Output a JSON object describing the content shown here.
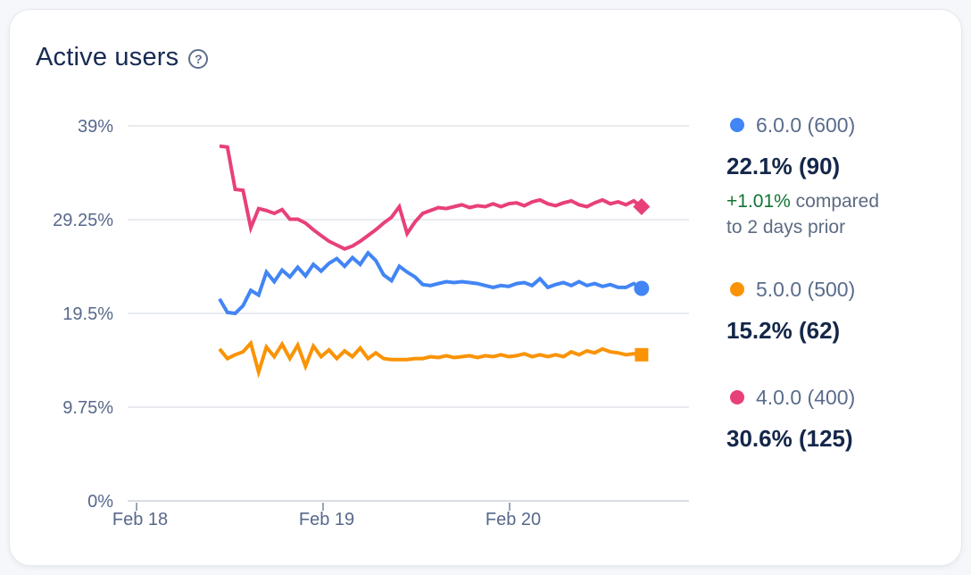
{
  "card": {
    "title": "Active users",
    "help_glyph": "?"
  },
  "legend": {
    "entries": [
      {
        "label": "6.0.0 (600)",
        "value": "22.1% (90)",
        "delta": "+1.01%",
        "delta_suffix": "compared to 2 days prior",
        "color": "#4285F4"
      },
      {
        "label": "5.0.0 (500)",
        "value": "15.2% (62)",
        "color": "#FA9305"
      },
      {
        "label": "4.0.0 (400)",
        "value": "30.6% (125)",
        "color": "#E8407A"
      }
    ]
  },
  "chart_data": {
    "type": "line",
    "title": "Active users",
    "grid": "horizontal",
    "legend_position": "right",
    "ylim": [
      0,
      39
    ],
    "y_ticks": [
      "0%",
      "9.75%",
      "19.5%",
      "29.25%",
      "39%"
    ],
    "y_tick_values": [
      0,
      9.75,
      19.5,
      29.25,
      39
    ],
    "x_ticks": [
      {
        "label": "Feb 18",
        "day": 0
      },
      {
        "label": "Feb 19",
        "day": 1
      },
      {
        "label": "Feb 20",
        "day": 2
      }
    ],
    "x_start_day": 0.445,
    "x_step_day": 0.0419,
    "x_unit": "days since Feb 18",
    "y_unit": "percent of active users",
    "series": [
      {
        "name": "6.0.0 (600)",
        "color": "#4285F4",
        "marker": "circle",
        "final_value": 22.1,
        "values": [
          21.0,
          19.6,
          19.5,
          20.3,
          21.9,
          21.4,
          23.8,
          22.8,
          24.0,
          23.3,
          24.3,
          23.4,
          24.6,
          23.9,
          24.7,
          25.2,
          24.4,
          25.3,
          24.6,
          25.8,
          25.0,
          23.5,
          22.9,
          24.4,
          23.8,
          23.3,
          22.5,
          22.4,
          22.6,
          22.8,
          22.7,
          22.8,
          22.7,
          22.6,
          22.4,
          22.2,
          22.4,
          22.3,
          22.6,
          22.7,
          22.4,
          23.1,
          22.2,
          22.5,
          22.7,
          22.4,
          22.8,
          22.4,
          22.6,
          22.3,
          22.5,
          22.2,
          22.2,
          22.6,
          22.1
        ]
      },
      {
        "name": "5.0.0 (500)",
        "color": "#FA9305",
        "marker": "square",
        "final_value": 15.2,
        "values": [
          15.8,
          14.8,
          15.2,
          15.5,
          16.4,
          13.4,
          16.0,
          15.0,
          16.3,
          14.8,
          16.2,
          14.0,
          16.1,
          15.0,
          15.7,
          14.8,
          15.6,
          15.0,
          15.9,
          14.8,
          15.4,
          14.8,
          14.7,
          14.7,
          14.7,
          14.8,
          14.8,
          15.0,
          14.9,
          15.1,
          14.9,
          15.0,
          15.1,
          14.9,
          15.1,
          15.0,
          15.2,
          15.0,
          15.1,
          15.3,
          15.0,
          15.2,
          15.0,
          15.2,
          15.0,
          15.5,
          15.2,
          15.6,
          15.4,
          15.8,
          15.5,
          15.4,
          15.2,
          15.3,
          15.2
        ]
      },
      {
        "name": "4.0.0 (400)",
        "color": "#E8407A",
        "marker": "diamond",
        "final_value": 30.6,
        "values": [
          36.9,
          36.8,
          32.4,
          32.3,
          28.4,
          30.4,
          30.2,
          29.9,
          30.3,
          29.3,
          29.3,
          28.9,
          28.2,
          27.6,
          27.0,
          26.6,
          26.2,
          26.5,
          27.0,
          27.6,
          28.2,
          28.9,
          29.5,
          30.6,
          27.8,
          29.0,
          29.9,
          30.2,
          30.5,
          30.4,
          30.6,
          30.8,
          30.5,
          30.7,
          30.6,
          30.9,
          30.6,
          30.9,
          31.0,
          30.7,
          31.1,
          31.3,
          30.9,
          30.7,
          31.0,
          31.2,
          30.8,
          30.6,
          31.0,
          31.3,
          30.9,
          31.1,
          30.8,
          31.2,
          30.6
        ]
      }
    ]
  },
  "style": {
    "gridline_color": "#e9ebef",
    "baseline_color": "#d9dee5",
    "tick_color": "#9aa4b5",
    "axis_label_color": "#57688b",
    "title_color": "#172b52",
    "value_color": "#14274a",
    "label_color": "#5a6c8c",
    "delta_green": "#137333",
    "delta_gray": "#5c6b82",
    "card_bg": "#ffffff",
    "page_bg": "#f5f7fa"
  }
}
